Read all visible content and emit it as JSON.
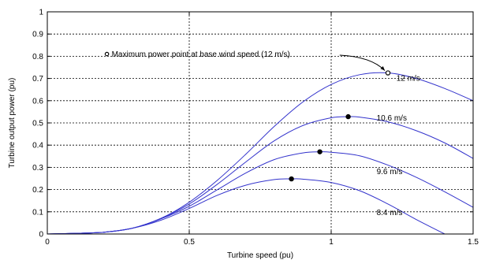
{
  "chart_data": {
    "type": "line",
    "title": "",
    "xlabel": "Turbine speed (pu)",
    "ylabel": "Turbine output power (pu)",
    "xlim": [
      0,
      1.5
    ],
    "ylim": [
      0,
      1
    ],
    "xticks": [
      "0",
      "0.5",
      "1",
      "1.5"
    ],
    "yticks": [
      "0",
      "0.1",
      "0.2",
      "0.3",
      "0.4",
      "0.5",
      "0.6",
      "0.7",
      "0.8",
      "0.9",
      "1"
    ],
    "grid": true,
    "grid_x": [
      0.5,
      1.0
    ],
    "grid_y": [
      0.1,
      0.2,
      0.3,
      0.4,
      0.5,
      0.6,
      0.7,
      0.8,
      0.9
    ],
    "series": [
      {
        "name": "12 m/s",
        "color": "#3333cc",
        "x": [
          0,
          0.1,
          0.2,
          0.3,
          0.4,
          0.5,
          0.6,
          0.7,
          0.8,
          0.9,
          1.0,
          1.1,
          1.2,
          1.3,
          1.4,
          1.5
        ],
        "y": [
          0,
          0.003,
          0.008,
          0.026,
          0.07,
          0.143,
          0.243,
          0.36,
          0.485,
          0.594,
          0.673,
          0.717,
          0.725,
          0.7,
          0.655,
          0.6
        ],
        "max_point": [
          1.2,
          0.725
        ]
      },
      {
        "name": "10.6 m/s",
        "color": "#3333cc",
        "x": [
          0,
          0.1,
          0.2,
          0.3,
          0.4,
          0.5,
          0.6,
          0.7,
          0.8,
          0.9,
          1.0,
          1.06,
          1.1,
          1.2,
          1.3,
          1.4,
          1.5
        ],
        "y": [
          0,
          0.003,
          0.008,
          0.026,
          0.07,
          0.135,
          0.225,
          0.325,
          0.42,
          0.488,
          0.523,
          0.528,
          0.526,
          0.505,
          0.465,
          0.41,
          0.34
        ],
        "max_point": [
          1.06,
          0.528
        ]
      },
      {
        "name": "9.6 m/s",
        "color": "#3333cc",
        "x": [
          0,
          0.1,
          0.2,
          0.3,
          0.4,
          0.5,
          0.6,
          0.7,
          0.8,
          0.9,
          0.96,
          1.0,
          1.1,
          1.2,
          1.3,
          1.4,
          1.5
        ],
        "y": [
          0,
          0.003,
          0.008,
          0.026,
          0.068,
          0.125,
          0.2,
          0.275,
          0.335,
          0.365,
          0.37,
          0.368,
          0.352,
          0.31,
          0.255,
          0.19,
          0.12
        ],
        "max_point": [
          0.96,
          0.37
        ]
      },
      {
        "name": "8.4 m/s",
        "color": "#3333cc",
        "x": [
          0,
          0.1,
          0.2,
          0.3,
          0.4,
          0.5,
          0.6,
          0.7,
          0.8,
          0.86,
          0.9,
          1.0,
          1.1,
          1.2,
          1.3,
          1.4
        ],
        "y": [
          0,
          0.003,
          0.008,
          0.026,
          0.062,
          0.115,
          0.175,
          0.22,
          0.245,
          0.248,
          0.247,
          0.232,
          0.195,
          0.135,
          0.065,
          0.0
        ],
        "max_point": [
          0.86,
          0.248
        ]
      }
    ],
    "annotation": {
      "text": "Maximum power point at base wind speed (12 m/s)",
      "marker_at": [
        0.21,
        0.81
      ],
      "arrow_to": [
        1.2,
        0.725
      ]
    }
  }
}
